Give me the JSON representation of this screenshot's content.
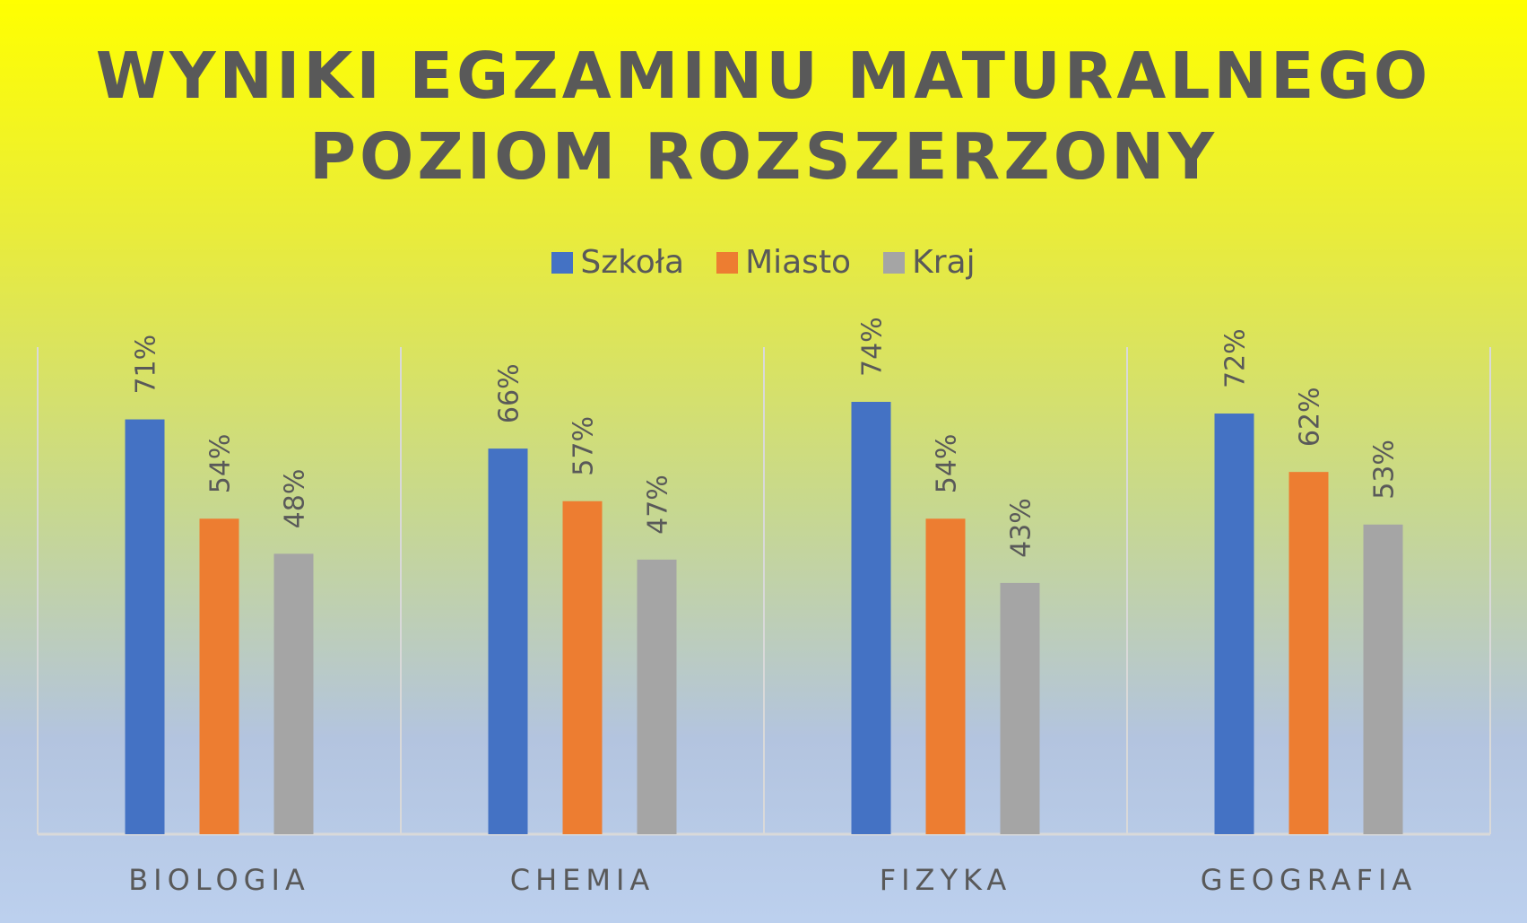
{
  "colors": {
    "series": [
      "#4472c4",
      "#ed7d31",
      "#a5a5a5"
    ],
    "text": "#595959",
    "gridline": "#d9d9d9"
  },
  "chart_data": {
    "type": "bar",
    "title": "WYNIKI EGZAMINU MATURALNEGO",
    "subtitle": "POZIOM ROZSZERZONY",
    "categories": [
      "BIOLOGIA",
      "CHEMIA",
      "FIZYKA",
      "GEOGRAFIA"
    ],
    "series": [
      {
        "name": "Szkoła",
        "values": [
          71,
          66,
          74,
          72
        ],
        "labels": [
          "71%",
          "66%",
          "74%",
          "72%"
        ]
      },
      {
        "name": "Miasto",
        "values": [
          54,
          57,
          54,
          62
        ],
        "labels": [
          "54%",
          "57%",
          "54%",
          "62%"
        ]
      },
      {
        "name": "Kraj",
        "values": [
          48,
          47,
          43,
          53
        ],
        "labels": [
          "48%",
          "47%",
          "43%",
          "53%"
        ]
      }
    ],
    "ylim": [
      0,
      80
    ],
    "legend": "top-center",
    "grid": false,
    "data_labels": "rotated-vertical"
  }
}
